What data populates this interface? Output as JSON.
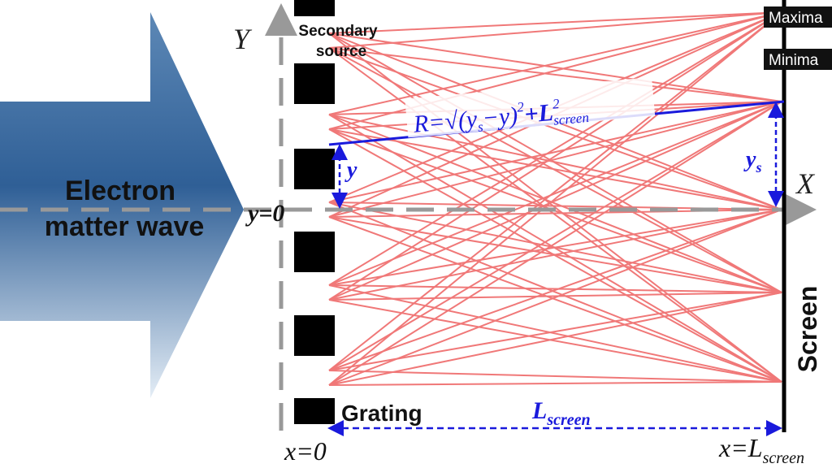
{
  "arrow_label": [
    "Electron",
    "matter wave"
  ],
  "secondary_source": [
    "Secondary",
    "source"
  ],
  "axes": {
    "y": "Y",
    "x": "X"
  },
  "origin_label": "y=0",
  "slit_offset": "y",
  "screen_offset": {
    "base": "y",
    "sub": "s"
  },
  "formula": {
    "lhs": "R=√",
    "open": "(",
    "ys": "y",
    "ys_sub": "s",
    "minus": "−y)",
    "sq1": "2",
    "plus": "+L",
    "sq2": "2",
    "sub": "screen"
  },
  "legend": {
    "maxima": "Maxima",
    "minima": "Minima"
  },
  "screen": "Screen",
  "grating": "Grating",
  "distance": {
    "base": "L",
    "sub": "screen"
  },
  "x_start": "x=0",
  "x_end": {
    "base": "x=L",
    "sub": "screen"
  }
}
